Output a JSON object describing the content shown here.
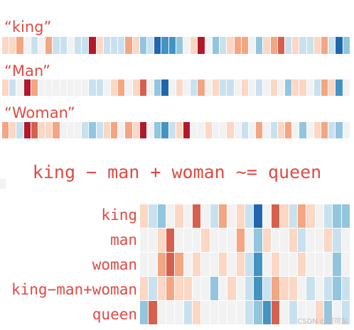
{
  "labels": {
    "king": "“king”",
    "man": "“Man”",
    "woman": "“Woman”"
  },
  "equation": "king − man + woman ~= queen",
  "heatmap_rows": [
    "king",
    "man",
    "woman",
    "king−man+woman",
    "queen"
  ],
  "watermark": "CSDN @涯可盐",
  "colors": {
    "dark_red": "#b2182b",
    "red": "#d6604d",
    "light_red": "#f4a582",
    "pale_red": "#fbd7c4",
    "neutral": "#f2f2f2",
    "pale_blue": "#c9e1ef",
    "light_blue": "#92c5de",
    "blue": "#4393c3",
    "dark_blue": "#2166ac"
  },
  "vectors": {
    "king": [
      1,
      1,
      2,
      0,
      -1,
      0,
      2,
      -1,
      -1,
      0,
      -1,
      -1,
      4,
      1,
      -1,
      -1,
      -1,
      2,
      1,
      -2,
      -1,
      -4,
      -3,
      -3,
      -2,
      0,
      1,
      4,
      0,
      -2,
      -1,
      1,
      2,
      2,
      0,
      -2,
      1,
      2,
      3,
      -1,
      1,
      -1,
      -1,
      1,
      2,
      -1,
      -4,
      -2
    ],
    "man": [
      1,
      -1,
      0,
      4,
      2,
      0,
      0,
      0,
      0,
      0,
      0,
      0,
      -1,
      -1,
      0,
      1,
      2,
      0,
      1,
      3,
      0,
      -2,
      -4,
      0,
      1,
      0,
      -1,
      2,
      0,
      1,
      -1,
      -1,
      0,
      1,
      0,
      -1,
      0,
      1,
      0,
      -2,
      1,
      1,
      0,
      -1,
      2,
      1,
      -3,
      0
    ],
    "woman": [
      2,
      1,
      -1,
      4,
      3,
      1,
      1,
      2,
      0,
      0,
      0,
      -1,
      -2,
      -1,
      1,
      2,
      0,
      2,
      1,
      4,
      0,
      -2,
      -3,
      -1,
      1,
      4,
      0,
      0,
      1,
      0,
      0,
      1,
      0,
      -1,
      0,
      2,
      0,
      -1,
      1,
      2,
      0,
      -2,
      0,
      1,
      2,
      -1,
      -2,
      0
    ]
  },
  "heatmap": {
    "columns": 24,
    "king": [
      1,
      -1,
      -2,
      0,
      1,
      0,
      3,
      0,
      -1,
      2,
      0,
      1,
      -1,
      -4,
      0,
      3,
      1,
      -1,
      2,
      1,
      0,
      -1,
      -2,
      -2
    ],
    "man": [
      0,
      0,
      1,
      3,
      0,
      0,
      0,
      1,
      0,
      0,
      0,
      2,
      0,
      -2,
      1,
      0,
      0,
      1,
      -1,
      0,
      0,
      1,
      -1,
      0
    ],
    "woman": [
      0,
      0,
      2,
      3,
      2,
      0,
      1,
      0,
      0,
      1,
      0,
      1,
      -1,
      -3,
      0,
      1,
      0,
      0,
      1,
      0,
      0,
      0,
      -2,
      0
    ],
    "king-man+woman": [
      1,
      -1,
      1,
      2,
      1,
      1,
      0,
      0,
      -2,
      0,
      1,
      0,
      -1,
      -3,
      -1,
      2,
      1,
      1,
      0,
      -1,
      0,
      -1,
      -2,
      -1
    ],
    "queen": [
      -2,
      3,
      0,
      0,
      0,
      -1,
      1,
      0,
      0,
      0,
      0,
      0,
      -1,
      -2,
      -3,
      3,
      0,
      -1,
      0,
      0,
      1,
      -2,
      0,
      -1
    ]
  }
}
